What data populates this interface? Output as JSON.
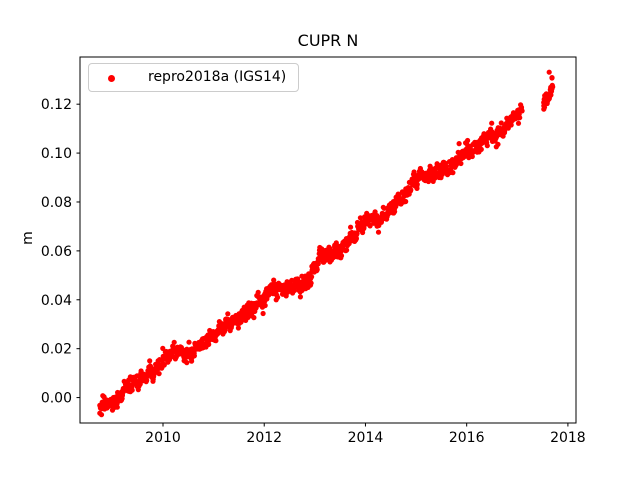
{
  "figure": {
    "title": "CUPR N",
    "ylabel": "m",
    "background": "#ffffff"
  },
  "legend": {
    "label": "repro2018a (IGS14)",
    "marker_color": "#ff0000",
    "location": "upper left"
  },
  "chart_data": {
    "type": "scatter",
    "title": "CUPR N",
    "xlabel": "",
    "ylabel": "m",
    "series_name": "repro2018a (IGS14)",
    "marker_color": "#ff0000",
    "grid": false,
    "legend_position": "upper left",
    "xlim": [
      2008.36,
      2018.16
    ],
    "ylim": [
      -0.0104,
      0.1393
    ],
    "xticks": [
      2010,
      2012,
      2014,
      2016,
      2018
    ],
    "xtick_labels": [
      "2010",
      "2012",
      "2014",
      "2016",
      "2018"
    ],
    "yticks": [
      0.0,
      0.02,
      0.04,
      0.06,
      0.08,
      0.1,
      0.12
    ],
    "ytick_labels": [
      "0.00",
      "0.02",
      "0.04",
      "0.06",
      "0.08",
      "0.10",
      "0.12"
    ],
    "trend_anchors": [
      [
        2008.75,
        -0.0035
      ],
      [
        2008.85,
        -0.003
      ],
      [
        2008.95,
        -0.0025
      ],
      [
        2009.0,
        -0.002
      ],
      [
        2009.1,
        0.0
      ],
      [
        2009.2,
        0.002
      ],
      [
        2009.35,
        0.005
      ],
      [
        2009.5,
        0.0065
      ],
      [
        2009.65,
        0.009
      ],
      [
        2009.8,
        0.01
      ],
      [
        2009.9,
        0.012
      ],
      [
        2010.0,
        0.016
      ],
      [
        2010.15,
        0.018
      ],
      [
        2010.3,
        0.018
      ],
      [
        2010.45,
        0.018
      ],
      [
        2010.6,
        0.0195
      ],
      [
        2010.75,
        0.021
      ],
      [
        2010.9,
        0.024
      ],
      [
        2011.0,
        0.026
      ],
      [
        2011.15,
        0.028
      ],
      [
        2011.3,
        0.0305
      ],
      [
        2011.45,
        0.032
      ],
      [
        2011.6,
        0.034
      ],
      [
        2011.75,
        0.036
      ],
      [
        2011.9,
        0.0395
      ],
      [
        2012.0,
        0.0405
      ],
      [
        2012.15,
        0.0435
      ],
      [
        2012.3,
        0.045
      ],
      [
        2012.45,
        0.0455
      ],
      [
        2012.6,
        0.045
      ],
      [
        2012.75,
        0.046
      ],
      [
        2012.9,
        0.049
      ],
      [
        2013.0,
        0.053
      ],
      [
        2013.1,
        0.057
      ],
      [
        2013.25,
        0.059
      ],
      [
        2013.4,
        0.0595
      ],
      [
        2013.55,
        0.061
      ],
      [
        2013.7,
        0.065
      ],
      [
        2013.85,
        0.069
      ],
      [
        2014.0,
        0.072
      ],
      [
        2014.15,
        0.073
      ],
      [
        2014.3,
        0.0735
      ],
      [
        2014.45,
        0.075
      ],
      [
        2014.6,
        0.079
      ],
      [
        2014.75,
        0.083
      ],
      [
        2014.9,
        0.087
      ],
      [
        2015.0,
        0.089
      ],
      [
        2015.15,
        0.0905
      ],
      [
        2015.3,
        0.0915
      ],
      [
        2015.45,
        0.092
      ],
      [
        2015.56,
        0.093
      ],
      [
        2015.78,
        0.096
      ],
      [
        2015.9,
        0.0985
      ],
      [
        2016.0,
        0.101
      ],
      [
        2016.15,
        0.1025
      ],
      [
        2016.3,
        0.104
      ],
      [
        2016.45,
        0.106
      ],
      [
        2016.6,
        0.108
      ],
      [
        2016.75,
        0.11
      ],
      [
        2016.9,
        0.113
      ],
      [
        2017.0,
        0.116
      ],
      [
        2017.1,
        0.118
      ],
      [
        2017.52,
        0.12
      ],
      [
        2017.58,
        0.1225
      ],
      [
        2017.65,
        0.126
      ],
      [
        2017.7,
        0.128
      ]
    ],
    "segments": [
      {
        "start": 2008.75,
        "end": 2017.1,
        "step": 0.008
      },
      {
        "start": 2017.52,
        "end": 2017.7,
        "step": 0.006
      }
    ],
    "noise_amplitude": 0.0026,
    "outliers": [
      [
        2010.47,
        0.0143
      ],
      [
        2013.3,
        0.0555
      ],
      [
        2017.63,
        0.1331
      ]
    ]
  }
}
